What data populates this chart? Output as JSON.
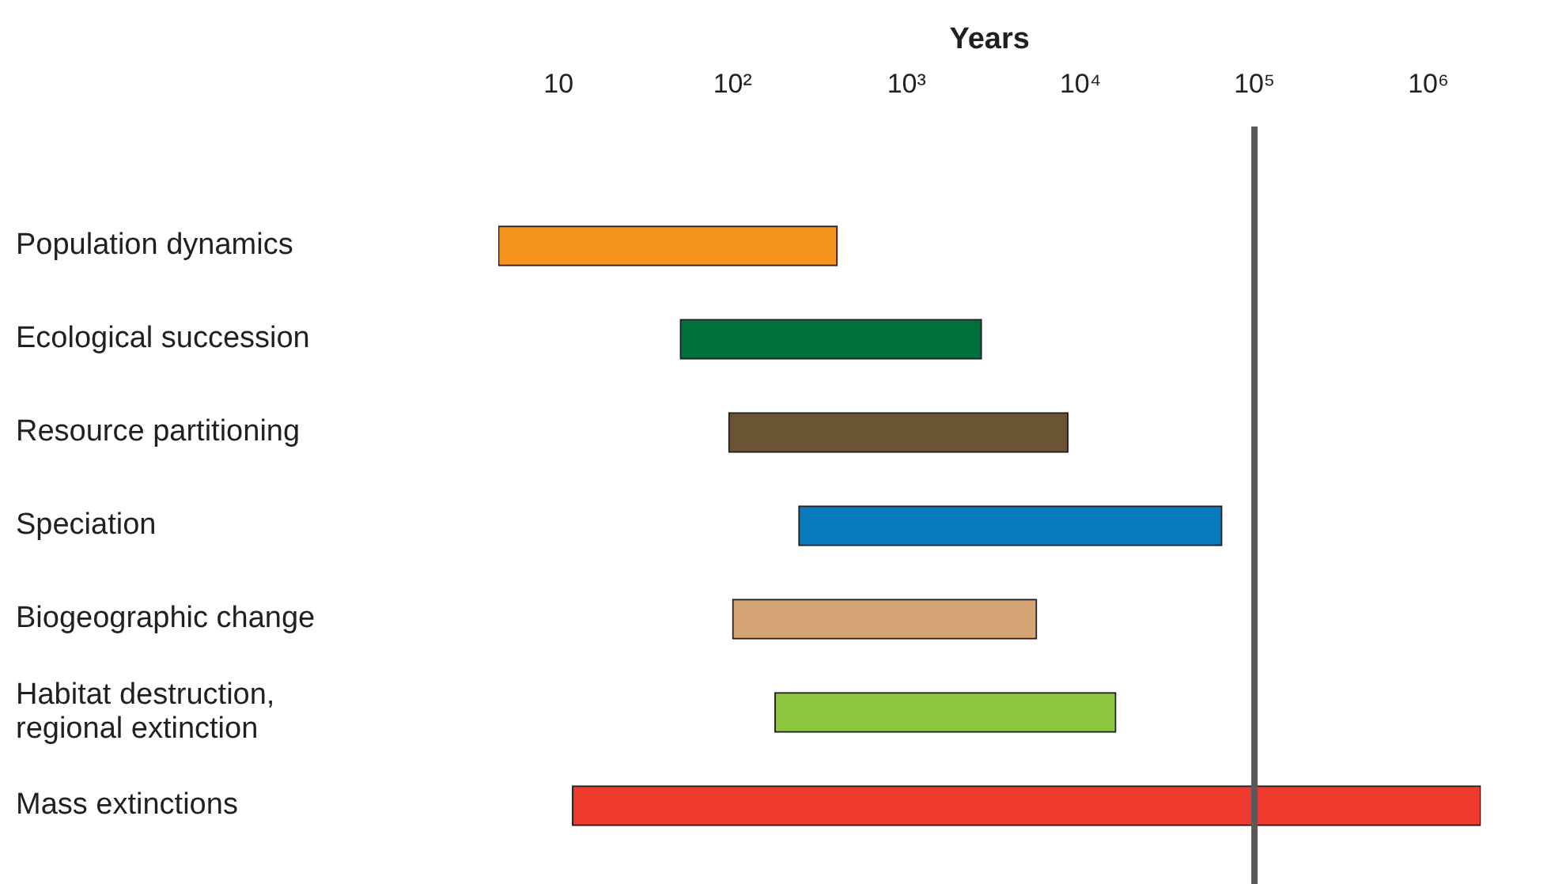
{
  "chart_data": {
    "type": "bar",
    "orientation": "horizontal",
    "xlabel": "Years",
    "log": "x",
    "categories": [
      "Population dynamics",
      "Ecological succession",
      "Resource partitioning",
      "Speciation",
      "Biogeographic change",
      "Habitat destruction,\nregional extinction",
      "Mass extinctions"
    ],
    "base": [
      4.5,
      50,
      95,
      240,
      100,
      175,
      12
    ],
    "values": [
      395.5,
      2650,
      8400,
      64760,
      5500,
      15800,
      1999988
    ],
    "colors": [
      "#f7941d",
      "#00703c",
      "#6b5434",
      "#0a7abf",
      "#d4a373",
      "#8dc63f",
      "#ee3b2e"
    ],
    "xticks": [
      10,
      {
        "value": 100,
        "label": "10²"
      },
      {
        "value": 1000,
        "label": "10³"
      },
      {
        "value": 10000,
        "label": "10⁴"
      },
      {
        "value": 100000,
        "label": "10⁵"
      },
      {
        "value": 1000000,
        "label": "10⁶"
      }
    ],
    "xlim": [
      4.5,
      2000000
    ],
    "ref_lines": [
      {
        "axis": "x",
        "value": 100000,
        "color": "#58595b"
      }
    ],
    "grid": false,
    "legend": false
  }
}
